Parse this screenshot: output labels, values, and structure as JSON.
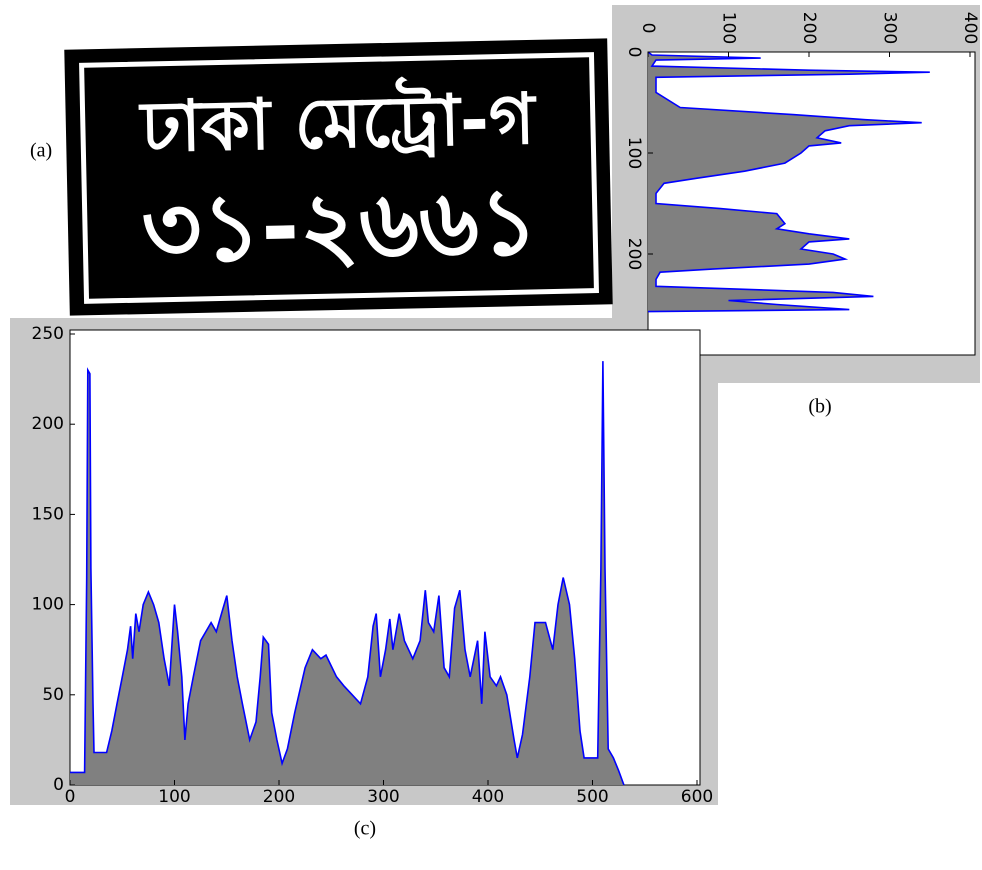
{
  "plate": {
    "label": "(a)",
    "line1": "ঢাকা মেট্রো-গ",
    "line2": "৩১-২৬৬১"
  },
  "chart_data": [
    {
      "type": "area",
      "label": "(b)",
      "orientation": "horizontal",
      "fill_color": "#808080",
      "line_color": "#0000ff",
      "x": [
        0,
        3,
        6,
        8,
        14,
        18,
        20,
        22,
        25,
        40,
        55,
        62,
        67,
        70,
        73,
        78,
        85,
        90,
        93,
        100,
        110,
        118,
        125,
        130,
        140,
        150,
        155,
        160,
        170,
        175,
        180,
        185,
        188,
        195,
        200,
        205,
        210,
        215,
        218,
        225,
        232,
        238,
        242,
        246,
        250,
        255,
        257
      ],
      "values": [
        0,
        5,
        140,
        10,
        5,
        200,
        350,
        250,
        10,
        10,
        40,
        180,
        270,
        340,
        250,
        220,
        210,
        240,
        200,
        190,
        170,
        120,
        60,
        20,
        10,
        10,
        90,
        160,
        170,
        160,
        200,
        250,
        200,
        190,
        230,
        245,
        200,
        80,
        15,
        10,
        10,
        230,
        280,
        100,
        160,
        250,
        0
      ],
      "xlim": [
        0,
        300
      ],
      "xticks": [
        0,
        100,
        200
      ],
      "ylim": [
        0,
        400
      ],
      "yticks": [
        0,
        100,
        200,
        300,
        400
      ]
    },
    {
      "type": "area",
      "label": "(c)",
      "orientation": "vertical",
      "fill_color": "#808080",
      "line_color": "#0000ff",
      "x": [
        0,
        14,
        16,
        17,
        19,
        20,
        22,
        23,
        35,
        40,
        45,
        50,
        55,
        58,
        60,
        63,
        66,
        70,
        75,
        80,
        85,
        90,
        95,
        100,
        103,
        107,
        110,
        113,
        118,
        125,
        135,
        140,
        145,
        150,
        155,
        160,
        165,
        172,
        178,
        182,
        185,
        190,
        193,
        198,
        203,
        208,
        215,
        225,
        232,
        240,
        245,
        255,
        262,
        270,
        278,
        285,
        290,
        293,
        297,
        302,
        306,
        309,
        315,
        320,
        328,
        335,
        340,
        343,
        348,
        353,
        358,
        363,
        368,
        373,
        378,
        383,
        390,
        394,
        397,
        402,
        408,
        412,
        418,
        425,
        428,
        433,
        440,
        445,
        455,
        462,
        467,
        472,
        478,
        483,
        488,
        492,
        505,
        508,
        510,
        512,
        515,
        520,
        525,
        530
      ],
      "values": [
        7,
        7,
        115,
        230,
        228,
        120,
        45,
        18,
        18,
        30,
        45,
        60,
        75,
        88,
        70,
        95,
        85,
        100,
        107,
        100,
        90,
        70,
        55,
        100,
        85,
        60,
        25,
        45,
        60,
        80,
        90,
        85,
        95,
        105,
        80,
        60,
        45,
        25,
        35,
        60,
        82,
        78,
        40,
        25,
        12,
        20,
        40,
        65,
        75,
        70,
        72,
        60,
        55,
        50,
        45,
        60,
        88,
        95,
        60,
        75,
        92,
        75,
        95,
        80,
        70,
        80,
        108,
        90,
        85,
        105,
        65,
        60,
        98,
        108,
        75,
        60,
        80,
        45,
        85,
        60,
        55,
        60,
        50,
        25,
        15,
        28,
        60,
        90,
        90,
        75,
        100,
        115,
        100,
        70,
        30,
        15,
        15,
        120,
        235,
        120,
        20,
        15,
        8,
        0
      ],
      "xlim": [
        0,
        600
      ],
      "xticks": [
        0,
        100,
        200,
        300,
        400,
        500,
        600
      ],
      "ylim": [
        0,
        250
      ],
      "yticks": [
        0,
        50,
        100,
        150,
        200,
        250
      ]
    }
  ]
}
